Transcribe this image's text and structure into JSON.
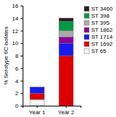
{
  "chart_data": {
    "type": "bar",
    "stacked": true,
    "categories": [
      "Year 1",
      "Year 2"
    ],
    "series": [
      {
        "name": "ST 65",
        "color": "#f5f5f5",
        "values": [
          1.0,
          0.0
        ]
      },
      {
        "name": "ST 1692",
        "color": "#dd0000",
        "values": [
          1.0,
          8.0
        ]
      },
      {
        "name": "ST 1714",
        "color": "#1a1aee",
        "values": [
          1.0,
          2.0
        ]
      },
      {
        "name": "ST 1862",
        "color": "#880099",
        "values": [
          0.0,
          1.0
        ]
      },
      {
        "name": "ST 395",
        "color": "#aaaaaa",
        "values": [
          0.0,
          1.0
        ]
      },
      {
        "name": "ST 398",
        "color": "#009944",
        "values": [
          0.0,
          1.5
        ]
      },
      {
        "name": "ST 3460",
        "color": "#222222",
        "values": [
          0.0,
          0.5
        ]
      }
    ],
    "ylabel": "% Serotype 6C isolates",
    "ylim": [
      0,
      16
    ],
    "yticks": [
      0,
      2,
      4,
      6,
      8,
      10,
      12,
      14,
      16
    ],
    "legend": "upper right"
  }
}
